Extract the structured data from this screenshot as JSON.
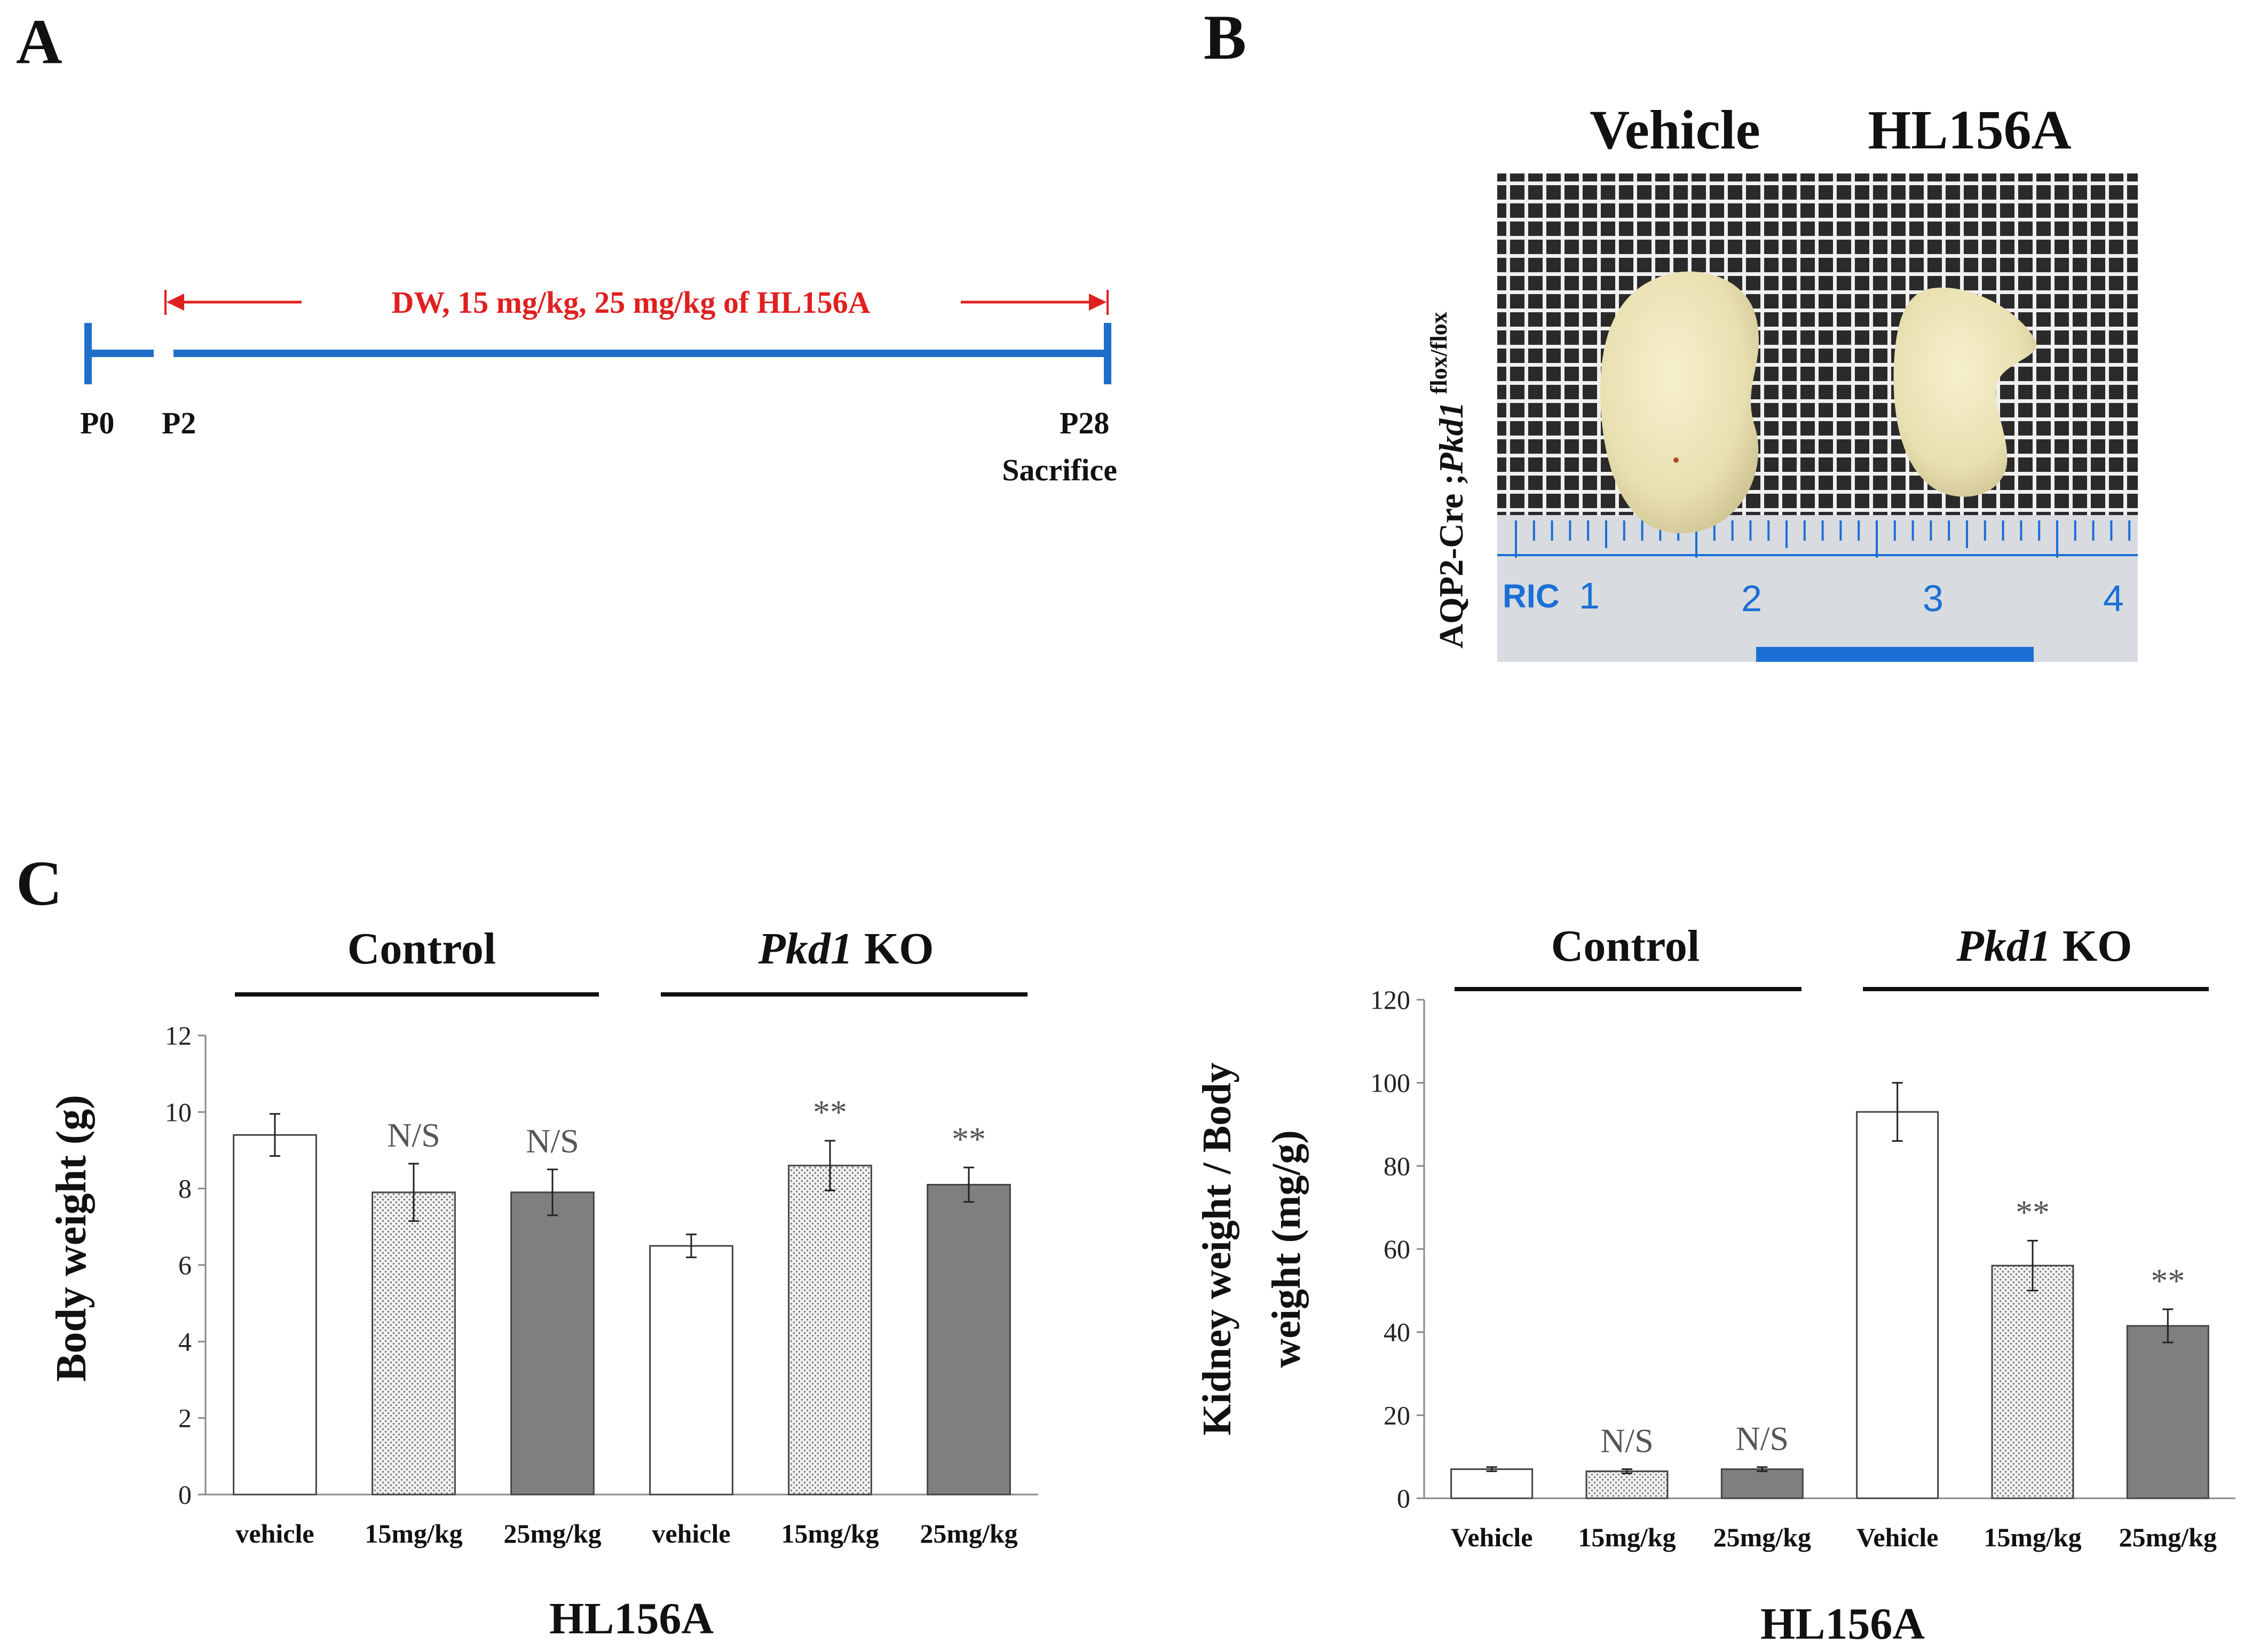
{
  "panels": {
    "A": {
      "letter": "A",
      "timeline": {
        "treatment_label": "DW, 15 mg/kg, 25 mg/kg of HL156A",
        "points": [
          {
            "label": "P0",
            "day": 0
          },
          {
            "label": "P2",
            "day": 2
          },
          {
            "label": "P28",
            "day": 28
          }
        ],
        "end_note": "Sacrifice"
      },
      "colors": {
        "line": "#1f6fc9",
        "arrow": "#e02020"
      }
    },
    "B": {
      "letter": "B",
      "col_labels": [
        "Vehicle",
        "HL156A"
      ],
      "side_label": {
        "prefix": "AQP2-Cre ;",
        "gene": "Pkd1",
        "superscript": "flox/flox"
      },
      "ruler": {
        "text": "RIC",
        "ticks": [
          "1",
          "2",
          "3",
          "4"
        ]
      },
      "colors": {
        "grid_bg": "#2a2a2a",
        "grid_line": "#f0f0f0",
        "kidney": "#ece4b8",
        "ruler": "#d8dbe0",
        "ruler_mark": "#1a6fd6"
      }
    },
    "C": {
      "letter": "C"
    }
  },
  "chart_data": [
    {
      "type": "bar",
      "ylabel": "Body weight (g)",
      "xlabel": "HL156A",
      "ylim": [
        0,
        12
      ],
      "yticks": [
        "0",
        "2",
        "4",
        "6",
        "8",
        "10",
        "12"
      ],
      "groups": [
        {
          "name": "Control",
          "italic_part": "",
          "rest": "Control"
        },
        {
          "name": "Pkd1 KO",
          "italic_part": "Pkd1",
          "rest": " KO"
        }
      ],
      "categories": [
        "vehicle",
        "15mg/kg",
        "25mg/kg",
        "vehicle",
        "15mg/kg",
        "25mg/kg"
      ],
      "values": [
        9.4,
        7.9,
        7.9,
        6.5,
        8.6,
        8.1
      ],
      "errors": [
        0.55,
        0.75,
        0.6,
        0.3,
        0.65,
        0.45
      ],
      "fills": [
        "white",
        "dots",
        "gray",
        "white",
        "dots",
        "gray"
      ],
      "annotations": [
        "",
        "N/S",
        "N/S",
        "",
        "**",
        "**"
      ]
    },
    {
      "type": "bar",
      "ylabel": "Kidney weight / Body weight (mg/g)",
      "ylabel_lines": [
        "Kidney weight / Body",
        "weight (mg/g)"
      ],
      "xlabel": "HL156A",
      "ylim": [
        0,
        120
      ],
      "yticks": [
        "0",
        "20",
        "40",
        "60",
        "80",
        "100",
        "120"
      ],
      "groups": [
        {
          "name": "Control",
          "italic_part": "",
          "rest": "Control"
        },
        {
          "name": "Pkd1 KO",
          "italic_part": "Pkd1",
          "rest": " KO"
        }
      ],
      "categories": [
        "Vehicle",
        "15mg/kg",
        "25mg/kg",
        "Vehicle",
        "15mg/kg",
        "25mg/kg"
      ],
      "values": [
        7,
        6.5,
        7,
        93,
        56,
        41.5
      ],
      "errors": [
        0.5,
        0.5,
        0.5,
        7,
        6,
        4
      ],
      "fills": [
        "white",
        "dots",
        "gray",
        "white",
        "dots",
        "gray"
      ],
      "annotations": [
        "",
        "N/S",
        "N/S",
        "",
        "**",
        "**"
      ]
    }
  ],
  "colors": {
    "gray_bar": "#7f7f7f",
    "dot_bar_bg": "#f2f2f2",
    "dot_bar_dot": "#777777",
    "axis": "#888888",
    "text": "#111111",
    "annot": "#555555"
  }
}
